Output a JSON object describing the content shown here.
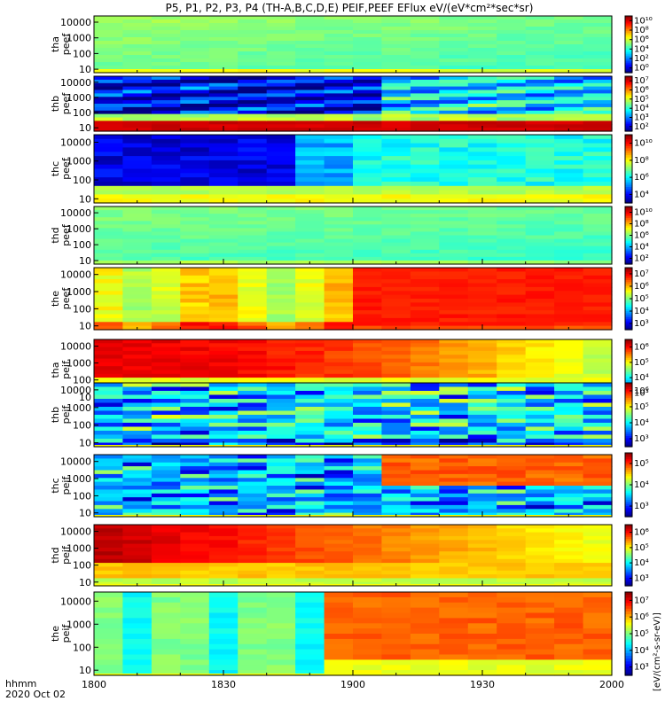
{
  "title": "P5, P1, P2, P3, P4 (TH-A,B,C,D,E) PEIF,PEEF EFlux eV/(eV*cm²*sec*sr)",
  "colorbar_label": "[eV/(cm²-s-sr-eV)]",
  "x_axis": {
    "ticks": [
      "1800",
      "1830",
      "1900",
      "1930",
      "2000"
    ],
    "label_line1": "hhmm",
    "label_line2": "2020 Oct 02"
  },
  "chart_data": {
    "type": "heatmap",
    "x_range": [
      "18:00",
      "20:00"
    ],
    "y_scale": "log",
    "y_range_eV": [
      5,
      30000
    ],
    "y_ticks": [
      "10",
      "100",
      "1000",
      "10000"
    ],
    "panels": [
      {
        "probe": "tha",
        "species": "peef",
        "ylabel": "tha peef",
        "cbar_ticks": [
          "10¹⁰",
          "10⁸",
          "10⁶",
          "10⁴",
          "10²",
          "10⁰"
        ],
        "cbar_exp_range": [
          0,
          10
        ],
        "pattern": "uniform-green-yellow"
      },
      {
        "probe": "thb",
        "species": "peef",
        "ylabel": "thb peef",
        "cbar_ticks": [
          "10⁷",
          "10⁶",
          "10⁵",
          "10⁴",
          "10³",
          "10²"
        ],
        "cbar_exp_range": [
          2,
          7.5
        ],
        "pattern": "blue-high-energy, red-low-energy"
      },
      {
        "probe": "thc",
        "species": "peef",
        "ylabel": "thc peef",
        "cbar_ticks": [
          "10¹⁰",
          "10⁸",
          "10⁶",
          "10⁴"
        ],
        "cbar_exp_range": [
          3,
          11
        ],
        "pattern": "blue-high-energy, yellow-low-energy"
      },
      {
        "probe": "thd",
        "species": "peef",
        "ylabel": "thd peef",
        "cbar_ticks": [
          "10¹⁰",
          "10⁸",
          "10⁶",
          "10⁴",
          "10²"
        ],
        "cbar_exp_range": [
          1,
          11
        ],
        "pattern": "uniform-green"
      },
      {
        "probe": "the",
        "species": "peef",
        "ylabel": "the peef",
        "cbar_ticks": [
          "10⁷",
          "10⁶",
          "10⁵",
          "10⁴",
          "10³"
        ],
        "cbar_exp_range": [
          2.5,
          7.5
        ],
        "pattern": "yellow-to-red after 18:55"
      },
      {
        "probe": "tha",
        "species": "peif",
        "ylabel": "tha peif",
        "cbar_ticks": [
          "10⁶",
          "10⁵",
          "10⁴",
          "10³"
        ],
        "cbar_exp_range": [
          2.5,
          6.5
        ],
        "pattern": "red high energy"
      },
      {
        "probe": "thb",
        "species": "peif",
        "ylabel": "thb peif",
        "cbar_ticks": [
          "10⁶",
          "10⁵",
          "10⁴",
          "10³"
        ],
        "cbar_exp_range": [
          2.5,
          6.5
        ],
        "pattern": "noisy blue-green"
      },
      {
        "probe": "thc",
        "species": "peif",
        "ylabel": "thc peif",
        "cbar_ticks": [
          "10⁵",
          "10⁴",
          "10³"
        ],
        "cbar_exp_range": [
          2.5,
          5.8
        ],
        "pattern": "noisy blue, orange after 19:15"
      },
      {
        "probe": "thd",
        "species": "peif",
        "ylabel": "thd peif",
        "cbar_ticks": [
          "10⁶",
          "10⁵",
          "10⁴",
          "10³"
        ],
        "cbar_exp_range": [
          2.5,
          6.5
        ],
        "pattern": "dark red early, yellow late"
      },
      {
        "probe": "the",
        "species": "peif",
        "ylabel": "the peif",
        "cbar_ticks": [
          "10⁷",
          "10⁶",
          "10⁵",
          "10⁴",
          "10³"
        ],
        "cbar_exp_range": [
          2.5,
          7.5
        ],
        "pattern": "green early, orange after 19:00"
      }
    ]
  },
  "colors": {
    "frame": "#000000",
    "background": "#ffffff"
  }
}
